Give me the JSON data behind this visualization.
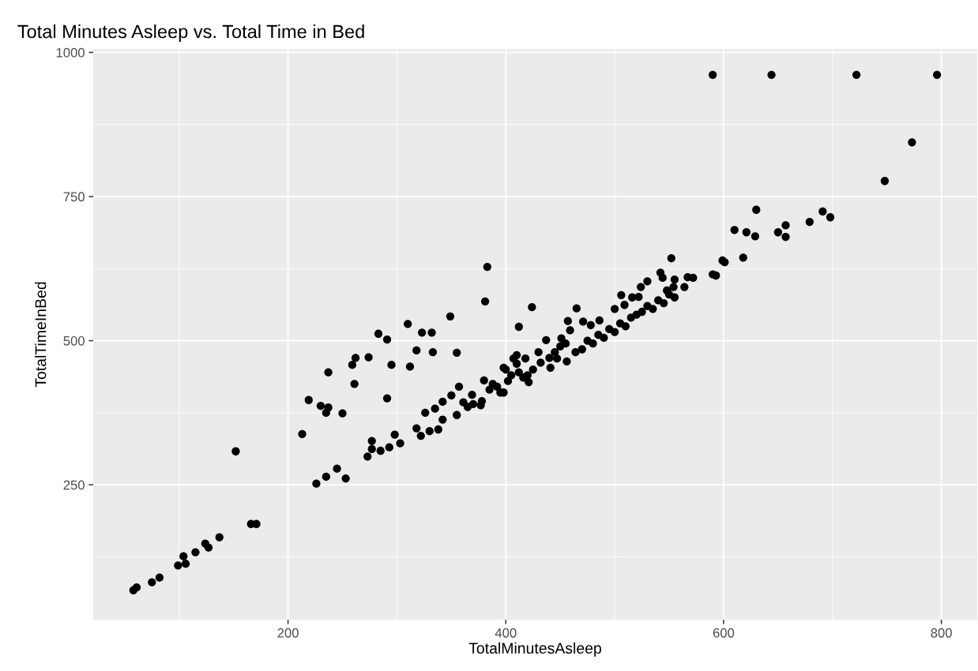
{
  "chart_data": {
    "type": "scatter",
    "title": "Total Minutes Asleep vs. Total Time in Bed",
    "xlabel": "TotalMinutesAsleep",
    "ylabel": "TotalTimeInBed",
    "xlim": [
      21.1,
      832.9
    ],
    "ylim": [
      16,
      1006
    ],
    "xticks": [
      200,
      400,
      600,
      800
    ],
    "yticks": [
      250,
      500,
      750,
      1000
    ],
    "grid": true,
    "marker": "circle",
    "series": [
      {
        "color": "#000000",
        "x": [
          58,
          61,
          75,
          82,
          99,
          104,
          106,
          115,
          124,
          127,
          137,
          166,
          171,
          152,
          226,
          235,
          245,
          253,
          213,
          219,
          230,
          237,
          235,
          250,
          237,
          259,
          262,
          261,
          274,
          283,
          291,
          295,
          291,
          310,
          323,
          332,
          318,
          333,
          312,
          349,
          355,
          381,
          383,
          424,
          412,
          273,
          277,
          277,
          285,
          293,
          298,
          303,
          318,
          322,
          326,
          330,
          338,
          342,
          335,
          342,
          350,
          357,
          355,
          361,
          369,
          377,
          380,
          388,
          398,
          398,
          407,
          410,
          418,
          421,
          416,
          430,
          437,
          441,
          447,
          451,
          456,
          459,
          457,
          464,
          465,
          590,
          644,
          722,
          796,
          773,
          748,
          630,
          691,
          698,
          679,
          610,
          621,
          629,
          650,
          657,
          657,
          618,
          599,
          601,
          590,
          593,
          552,
          567,
          572,
          564,
          542,
          544,
          555,
          554,
          548,
          530,
          524,
          506,
          522,
          470,
          475,
          480,
          485,
          490,
          495,
          500,
          505,
          510,
          515,
          520,
          525,
          530,
          535,
          540,
          545,
          550,
          555,
          471,
          486,
          478,
          500,
          509,
          516,
          385,
          392,
          395,
          402,
          405,
          412,
          420,
          425,
          432,
          440,
          445,
          450,
          455,
          400,
          410,
          365,
          370,
          378
        ],
        "values": [
          67,
          72,
          81,
          89,
          110,
          126,
          113,
          133,
          148,
          141,
          159,
          182,
          182,
          308,
          252,
          264,
          278,
          261,
          338,
          397,
          387,
          384,
          375,
          374,
          445,
          458,
          470,
          425,
          471,
          512,
          502,
          458,
          400,
          529,
          514,
          514,
          483,
          480,
          455,
          542,
          479,
          568,
          628,
          558,
          524,
          299,
          326,
          312,
          309,
          315,
          337,
          322,
          348,
          335,
          375,
          343,
          346,
          363,
          382,
          394,
          405,
          420,
          371,
          393,
          406,
          388,
          431,
          425,
          453,
          410,
          469,
          475,
          469,
          428,
          436,
          480,
          501,
          453,
          469,
          504,
          464,
          518,
          534,
          480,
          556,
          961,
          961,
          961,
          961,
          844,
          777,
          727,
          724,
          714,
          706,
          692,
          688,
          681,
          688,
          700,
          680,
          644,
          639,
          636,
          615,
          613,
          643,
          610,
          609,
          593,
          618,
          609,
          606,
          593,
          587,
          603,
          593,
          579,
          576,
          485,
          500,
          495,
          510,
          505,
          520,
          515,
          530,
          525,
          540,
          545,
          550,
          560,
          555,
          570,
          565,
          580,
          575,
          533,
          535,
          527,
          555,
          562,
          575,
          415,
          420,
          410,
          430,
          440,
          445,
          440,
          450,
          462,
          470,
          480,
          490,
          495,
          450,
          460,
          385,
          390,
          395
        ]
      }
    ]
  }
}
